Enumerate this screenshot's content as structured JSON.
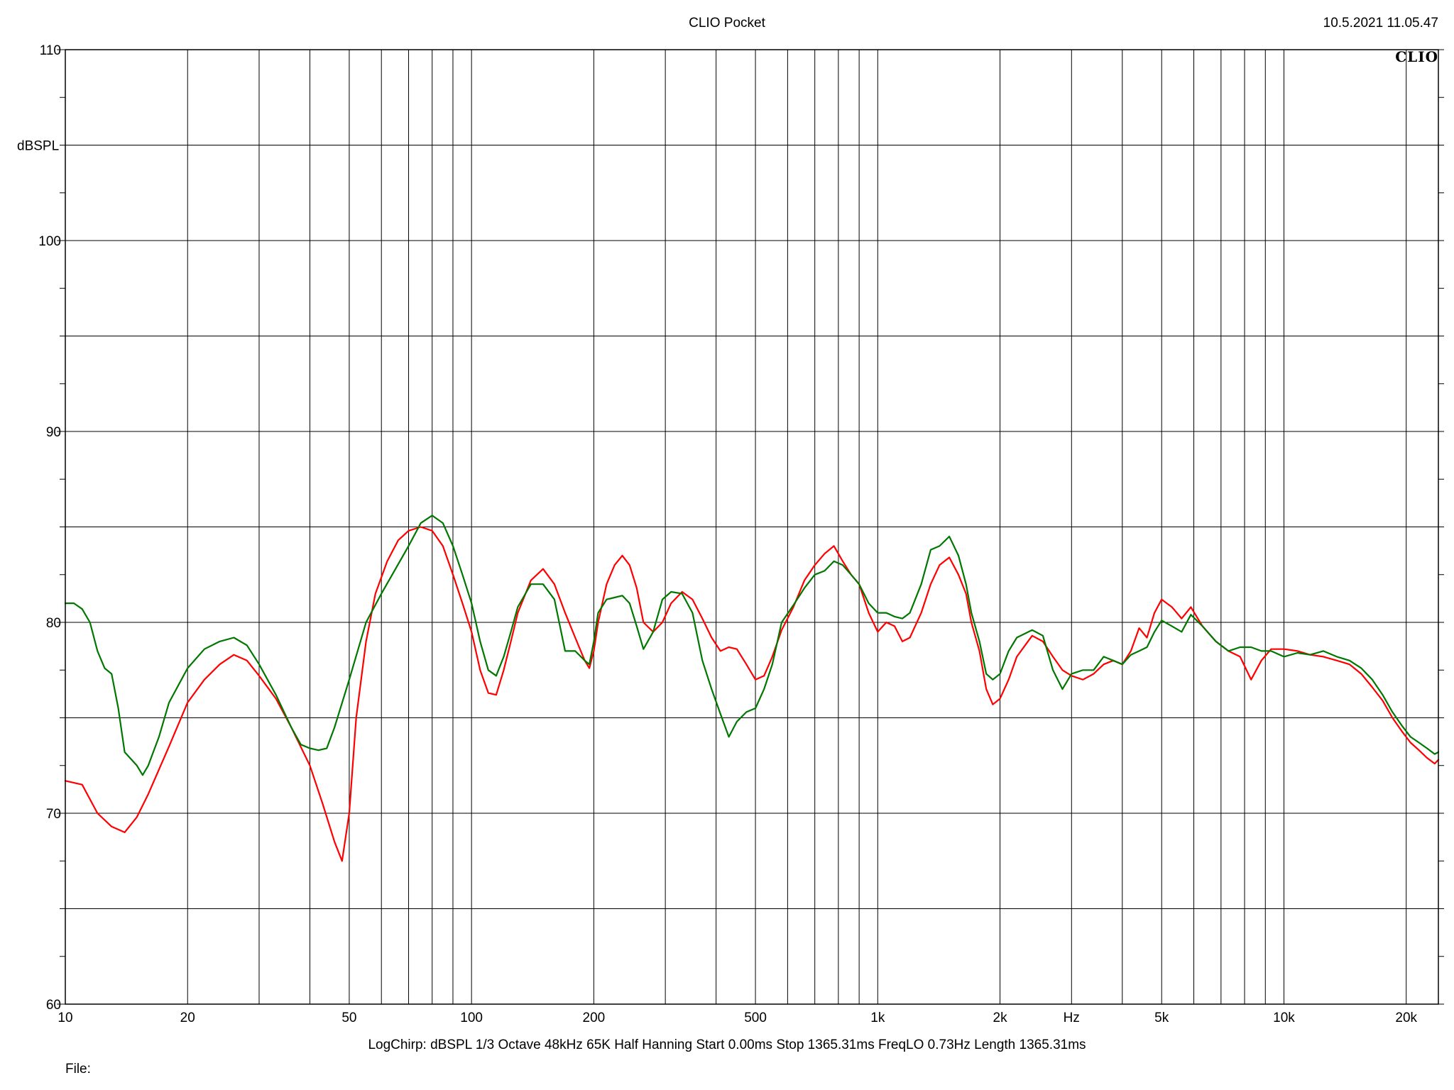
{
  "header": {
    "title": "CLIO Pocket",
    "timestamp": "10.5.2021 11.05.47",
    "logo": "CLIO"
  },
  "footer": {
    "params": "LogChirp:  dBSPL   1/3 Octave   48kHz   65K   Half Hanning   Start 0.00ms   Stop 1365.31ms   FreqLO 0.73Hz   Length 1365.31ms",
    "file_label": "File:"
  },
  "chart_data": {
    "type": "line",
    "title": "CLIO Pocket",
    "xlabel": "Hz",
    "ylabel": "dBSPL",
    "xscale": "log",
    "xlim": [
      10,
      24000
    ],
    "ylim": [
      60,
      110
    ],
    "x_ticks": [
      {
        "value": 10,
        "label": "10"
      },
      {
        "value": 20,
        "label": "20"
      },
      {
        "value": 50,
        "label": "50"
      },
      {
        "value": 100,
        "label": "100"
      },
      {
        "value": 200,
        "label": "200"
      },
      {
        "value": 500,
        "label": "500"
      },
      {
        "value": 1000,
        "label": "1k"
      },
      {
        "value": 2000,
        "label": "2k"
      },
      {
        "value": 5000,
        "label": "5k"
      },
      {
        "value": 10000,
        "label": "10k"
      },
      {
        "value": 20000,
        "label": "20k"
      }
    ],
    "y_ticks": [
      {
        "value": 60,
        "label": "60"
      },
      {
        "value": 70,
        "label": "70"
      },
      {
        "value": 80,
        "label": "80"
      },
      {
        "value": 90,
        "label": "90"
      },
      {
        "value": 100,
        "label": "100"
      },
      {
        "value": 110,
        "label": "110"
      }
    ],
    "grid": true,
    "series": [
      {
        "color": "#ff0000",
        "points": [
          [
            10,
            71.7
          ],
          [
            11,
            71.5
          ],
          [
            12,
            70.0
          ],
          [
            13,
            69.3
          ],
          [
            14,
            69.0
          ],
          [
            15,
            69.8
          ],
          [
            16,
            71.0
          ],
          [
            18,
            73.5
          ],
          [
            20,
            75.8
          ],
          [
            22,
            77.0
          ],
          [
            24,
            77.8
          ],
          [
            26,
            78.3
          ],
          [
            28,
            78.0
          ],
          [
            30,
            77.2
          ],
          [
            33,
            76.0
          ],
          [
            36,
            74.5
          ],
          [
            40,
            72.5
          ],
          [
            43,
            70.5
          ],
          [
            46,
            68.5
          ],
          [
            48,
            67.5
          ],
          [
            50,
            70.0
          ],
          [
            52,
            75.0
          ],
          [
            55,
            79.0
          ],
          [
            58,
            81.5
          ],
          [
            62,
            83.2
          ],
          [
            66,
            84.3
          ],
          [
            70,
            84.8
          ],
          [
            75,
            85.0
          ],
          [
            80,
            84.8
          ],
          [
            85,
            84.0
          ],
          [
            90,
            82.5
          ],
          [
            95,
            81.0
          ],
          [
            100,
            79.5
          ],
          [
            105,
            77.5
          ],
          [
            110,
            76.3
          ],
          [
            115,
            76.2
          ],
          [
            120,
            77.5
          ],
          [
            125,
            79.0
          ],
          [
            130,
            80.5
          ],
          [
            140,
            82.2
          ],
          [
            150,
            82.8
          ],
          [
            160,
            82.0
          ],
          [
            170,
            80.5
          ],
          [
            180,
            79.2
          ],
          [
            190,
            78.0
          ],
          [
            195,
            77.6
          ],
          [
            200,
            78.5
          ],
          [
            205,
            80.0
          ],
          [
            215,
            82.0
          ],
          [
            225,
            83.0
          ],
          [
            235,
            83.5
          ],
          [
            245,
            83.0
          ],
          [
            255,
            81.8
          ],
          [
            265,
            80.0
          ],
          [
            280,
            79.5
          ],
          [
            295,
            80.0
          ],
          [
            310,
            81.0
          ],
          [
            330,
            81.6
          ],
          [
            350,
            81.2
          ],
          [
            370,
            80.2
          ],
          [
            390,
            79.2
          ],
          [
            410,
            78.5
          ],
          [
            430,
            78.7
          ],
          [
            450,
            78.6
          ],
          [
            475,
            77.8
          ],
          [
            500,
            77.0
          ],
          [
            525,
            77.2
          ],
          [
            550,
            78.2
          ],
          [
            580,
            79.6
          ],
          [
            620,
            80.8
          ],
          [
            660,
            82.2
          ],
          [
            700,
            83.0
          ],
          [
            740,
            83.6
          ],
          [
            780,
            84.0
          ],
          [
            820,
            83.2
          ],
          [
            860,
            82.5
          ],
          [
            900,
            82.0
          ],
          [
            950,
            80.5
          ],
          [
            1000,
            79.5
          ],
          [
            1050,
            80.0
          ],
          [
            1100,
            79.8
          ],
          [
            1150,
            79.0
          ],
          [
            1200,
            79.2
          ],
          [
            1280,
            80.5
          ],
          [
            1350,
            82.0
          ],
          [
            1420,
            83.0
          ],
          [
            1500,
            83.4
          ],
          [
            1580,
            82.5
          ],
          [
            1650,
            81.5
          ],
          [
            1700,
            80.0
          ],
          [
            1780,
            78.5
          ],
          [
            1850,
            76.5
          ],
          [
            1920,
            75.7
          ],
          [
            2000,
            76.0
          ],
          [
            2100,
            77.0
          ],
          [
            2200,
            78.2
          ],
          [
            2400,
            79.3
          ],
          [
            2550,
            79.0
          ],
          [
            2700,
            78.2
          ],
          [
            2850,
            77.5
          ],
          [
            3000,
            77.2
          ],
          [
            3200,
            77.0
          ],
          [
            3400,
            77.3
          ],
          [
            3600,
            77.8
          ],
          [
            3800,
            78.0
          ],
          [
            4000,
            77.8
          ],
          [
            4200,
            78.5
          ],
          [
            4400,
            79.7
          ],
          [
            4600,
            79.2
          ],
          [
            4800,
            80.5
          ],
          [
            5000,
            81.2
          ],
          [
            5300,
            80.8
          ],
          [
            5600,
            80.2
          ],
          [
            5900,
            80.8
          ],
          [
            6300,
            79.8
          ],
          [
            6800,
            79.0
          ],
          [
            7300,
            78.5
          ],
          [
            7800,
            78.2
          ],
          [
            8300,
            77.0
          ],
          [
            8800,
            78.0
          ],
          [
            9300,
            78.6
          ],
          [
            10000,
            78.6
          ],
          [
            10800,
            78.5
          ],
          [
            11600,
            78.3
          ],
          [
            12500,
            78.2
          ],
          [
            13500,
            78.0
          ],
          [
            14500,
            77.8
          ],
          [
            15500,
            77.3
          ],
          [
            16500,
            76.6
          ],
          [
            17500,
            75.9
          ],
          [
            18500,
            75.0
          ],
          [
            19500,
            74.3
          ],
          [
            20500,
            73.7
          ],
          [
            21500,
            73.3
          ],
          [
            22500,
            72.9
          ],
          [
            23500,
            72.6
          ],
          [
            24000,
            72.8
          ]
        ]
      },
      {
        "color": "#007700",
        "points": [
          [
            10,
            81.0
          ],
          [
            10.5,
            81.0
          ],
          [
            11,
            80.7
          ],
          [
            11.5,
            80.0
          ],
          [
            12,
            78.5
          ],
          [
            12.5,
            77.6
          ],
          [
            13,
            77.3
          ],
          [
            13.5,
            75.5
          ],
          [
            14,
            73.2
          ],
          [
            15,
            72.5
          ],
          [
            15.5,
            72.0
          ],
          [
            16,
            72.5
          ],
          [
            17,
            74.0
          ],
          [
            18,
            75.8
          ],
          [
            20,
            77.6
          ],
          [
            22,
            78.6
          ],
          [
            24,
            79.0
          ],
          [
            26,
            79.2
          ],
          [
            28,
            78.8
          ],
          [
            30,
            77.8
          ],
          [
            33,
            76.2
          ],
          [
            36,
            74.5
          ],
          [
            38,
            73.6
          ],
          [
            40,
            73.4
          ],
          [
            42,
            73.3
          ],
          [
            44,
            73.4
          ],
          [
            46,
            74.5
          ],
          [
            50,
            77.0
          ],
          [
            55,
            80.0
          ],
          [
            60,
            81.5
          ],
          [
            65,
            82.8
          ],
          [
            70,
            84.0
          ],
          [
            75,
            85.2
          ],
          [
            80,
            85.6
          ],
          [
            85,
            85.2
          ],
          [
            90,
            84.0
          ],
          [
            95,
            82.5
          ],
          [
            100,
            81.0
          ],
          [
            105,
            79.0
          ],
          [
            110,
            77.5
          ],
          [
            115,
            77.2
          ],
          [
            120,
            78.2
          ],
          [
            125,
            79.5
          ],
          [
            130,
            80.8
          ],
          [
            140,
            82.0
          ],
          [
            150,
            82.0
          ],
          [
            160,
            81.2
          ],
          [
            170,
            78.5
          ],
          [
            180,
            78.5
          ],
          [
            190,
            78.0
          ],
          [
            195,
            77.8
          ],
          [
            200,
            79.0
          ],
          [
            205,
            80.5
          ],
          [
            215,
            81.2
          ],
          [
            225,
            81.3
          ],
          [
            235,
            81.4
          ],
          [
            245,
            81.0
          ],
          [
            255,
            79.8
          ],
          [
            265,
            78.6
          ],
          [
            280,
            79.5
          ],
          [
            295,
            81.2
          ],
          [
            310,
            81.6
          ],
          [
            330,
            81.5
          ],
          [
            350,
            80.5
          ],
          [
            370,
            78.0
          ],
          [
            390,
            76.5
          ],
          [
            410,
            75.2
          ],
          [
            430,
            74.0
          ],
          [
            450,
            74.8
          ],
          [
            475,
            75.3
          ],
          [
            500,
            75.5
          ],
          [
            525,
            76.5
          ],
          [
            550,
            77.8
          ],
          [
            580,
            80.0
          ],
          [
            620,
            80.9
          ],
          [
            660,
            81.8
          ],
          [
            700,
            82.5
          ],
          [
            740,
            82.7
          ],
          [
            780,
            83.2
          ],
          [
            820,
            83.0
          ],
          [
            860,
            82.5
          ],
          [
            900,
            82.0
          ],
          [
            950,
            81.0
          ],
          [
            1000,
            80.5
          ],
          [
            1050,
            80.5
          ],
          [
            1100,
            80.3
          ],
          [
            1150,
            80.2
          ],
          [
            1200,
            80.5
          ],
          [
            1280,
            82.0
          ],
          [
            1350,
            83.8
          ],
          [
            1420,
            84.0
          ],
          [
            1500,
            84.5
          ],
          [
            1580,
            83.5
          ],
          [
            1650,
            82.0
          ],
          [
            1700,
            80.5
          ],
          [
            1780,
            79.0
          ],
          [
            1850,
            77.3
          ],
          [
            1920,
            77.0
          ],
          [
            2000,
            77.3
          ],
          [
            2100,
            78.5
          ],
          [
            2200,
            79.2
          ],
          [
            2400,
            79.6
          ],
          [
            2550,
            79.3
          ],
          [
            2700,
            77.5
          ],
          [
            2850,
            76.5
          ],
          [
            3000,
            77.3
          ],
          [
            3200,
            77.5
          ],
          [
            3400,
            77.5
          ],
          [
            3600,
            78.2
          ],
          [
            3800,
            78.0
          ],
          [
            4000,
            77.8
          ],
          [
            4200,
            78.3
          ],
          [
            4400,
            78.5
          ],
          [
            4600,
            78.7
          ],
          [
            4800,
            79.5
          ],
          [
            5000,
            80.1
          ],
          [
            5300,
            79.8
          ],
          [
            5600,
            79.5
          ],
          [
            5900,
            80.4
          ],
          [
            6300,
            79.8
          ],
          [
            6800,
            79.0
          ],
          [
            7300,
            78.5
          ],
          [
            7800,
            78.7
          ],
          [
            8300,
            78.7
          ],
          [
            8800,
            78.5
          ],
          [
            9300,
            78.5
          ],
          [
            10000,
            78.2
          ],
          [
            10800,
            78.4
          ],
          [
            11600,
            78.3
          ],
          [
            12500,
            78.5
          ],
          [
            13500,
            78.2
          ],
          [
            14500,
            78.0
          ],
          [
            15500,
            77.6
          ],
          [
            16500,
            77.0
          ],
          [
            17500,
            76.2
          ],
          [
            18500,
            75.3
          ],
          [
            19500,
            74.6
          ],
          [
            20500,
            74.0
          ],
          [
            21500,
            73.7
          ],
          [
            22500,
            73.4
          ],
          [
            23500,
            73.1
          ],
          [
            24000,
            73.2
          ]
        ]
      }
    ]
  }
}
